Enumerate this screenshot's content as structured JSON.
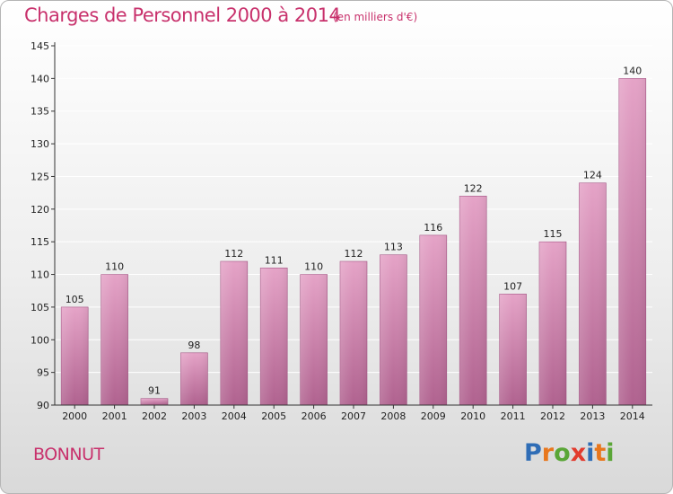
{
  "header": {
    "title": "Charges de Personnel 2000 à 2014",
    "subtitle": "(en milliers d'€)"
  },
  "footer": {
    "commune": "BONNUT",
    "logo_letters": [
      "P",
      "r",
      "o",
      "x",
      "i",
      "t",
      "i"
    ],
    "logo_colors": [
      "#2f6db6",
      "#e8771d",
      "#5aa637",
      "#e23b2e",
      "#2f6db6",
      "#e8771d",
      "#5aa637"
    ]
  },
  "colors": {
    "accent": "#c8316c",
    "bar_top": "#e5a3c7",
    "bar_bottom": "#b0628f",
    "bar_stroke": "#a45384"
  },
  "chart_data": {
    "type": "bar",
    "title": "Charges de Personnel 2000 à 2014",
    "subtitle": "(en milliers d'€)",
    "categories": [
      "2000",
      "2001",
      "2002",
      "2003",
      "2004",
      "2005",
      "2006",
      "2007",
      "2008",
      "2009",
      "2010",
      "2011",
      "2012",
      "2013",
      "2014"
    ],
    "values": [
      105,
      110,
      91,
      98,
      112,
      111,
      110,
      112,
      113,
      116,
      122,
      107,
      115,
      124,
      140
    ],
    "ylim": [
      90,
      145
    ],
    "yticks": [
      90,
      95,
      100,
      105,
      110,
      115,
      120,
      125,
      130,
      135,
      140,
      145
    ],
    "grid": true,
    "xlabel": "",
    "ylabel": ""
  }
}
